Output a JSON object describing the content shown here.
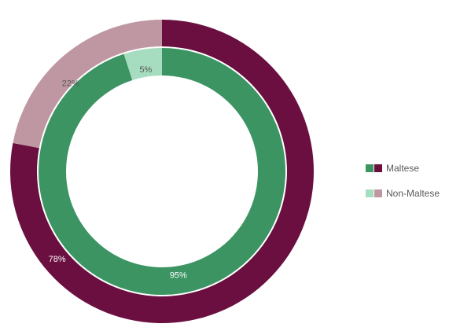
{
  "chart_data": {
    "type": "pie",
    "variant": "nested-donut",
    "categories": [
      "Maltese",
      "Non-Maltese"
    ],
    "series": [
      {
        "ring": "outer",
        "values": [
          78,
          22
        ],
        "labels": [
          "78%",
          "22%"
        ],
        "colors": [
          "#6a0f3f",
          "#bf97a2"
        ]
      },
      {
        "ring": "inner",
        "values": [
          95,
          5
        ],
        "labels": [
          "95%",
          "5%"
        ],
        "colors": [
          "#3c9463",
          "#a6dcc0"
        ]
      }
    ],
    "legend": {
      "placement": "right",
      "entries": [
        {
          "label": "Maltese",
          "colors": [
            "#3c9463",
            "#6a0f3f"
          ]
        },
        {
          "label": "Non-Maltese",
          "colors": [
            "#a6dcc0",
            "#bf97a2"
          ]
        }
      ]
    },
    "label_colors": {
      "dark_segment": "#ffffff",
      "light_segment": "#595959"
    }
  }
}
